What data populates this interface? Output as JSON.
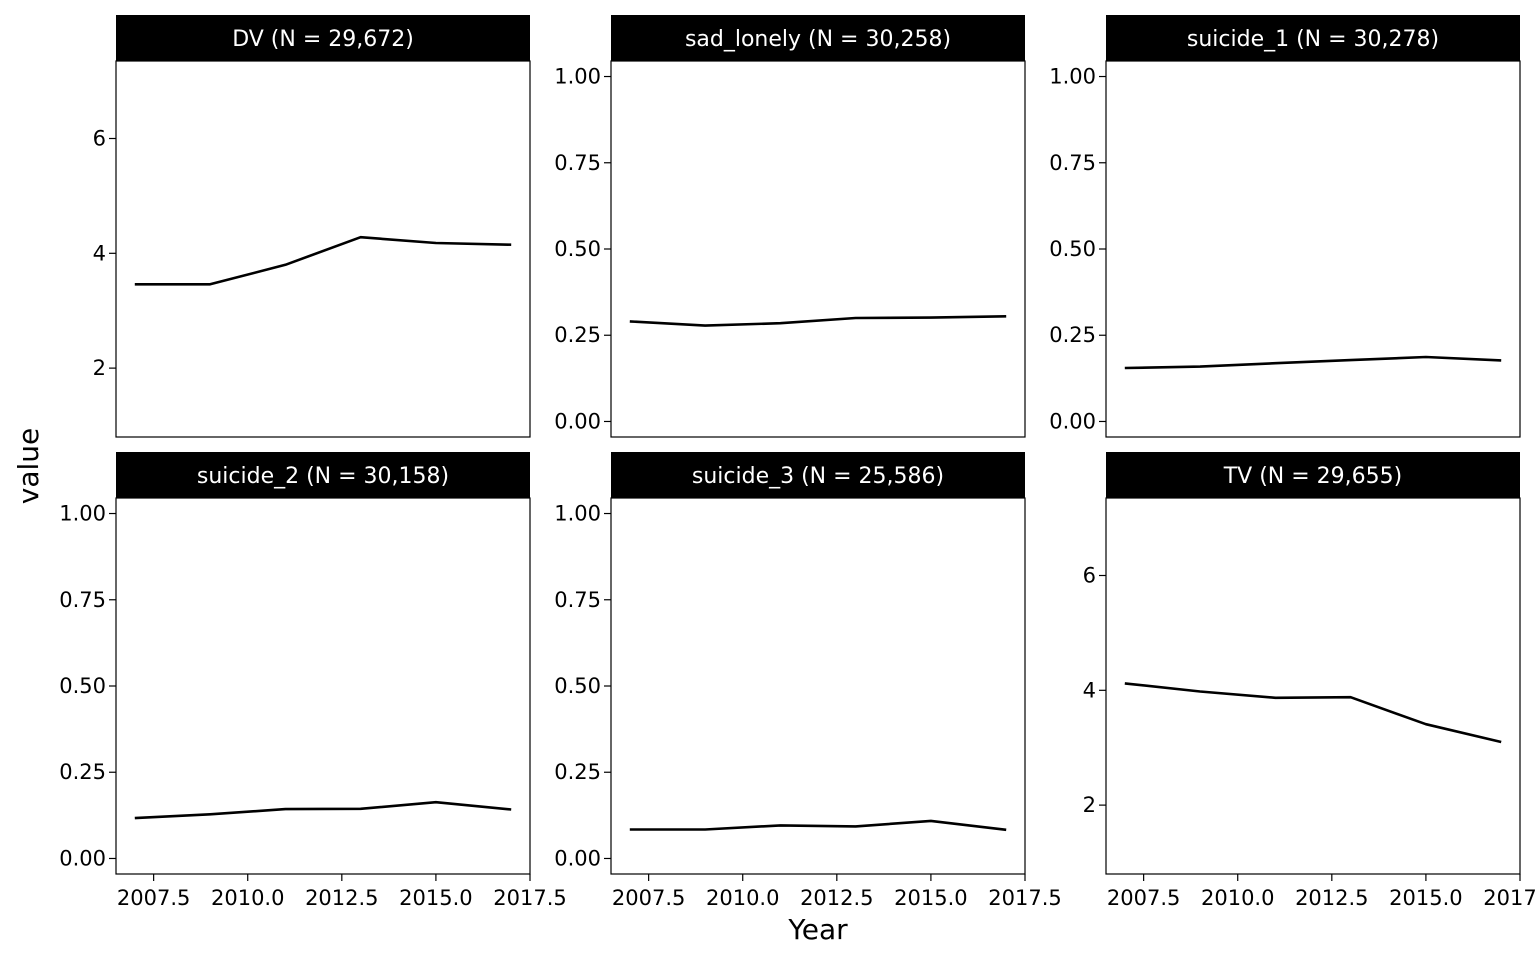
{
  "chart_data": {
    "type": "line",
    "xlabel": "Year",
    "ylabel": "value",
    "line_color": "#000000",
    "strip_color": "#000000",
    "strip_text_color": "#ffffff",
    "x_ticks": [
      "2007.5",
      "2010.0",
      "2012.5",
      "2015.0",
      "2017.5"
    ],
    "xlim": [
      2006.5,
      2017.5
    ],
    "panels": [
      {
        "title": "DV (N = 29,672)",
        "x": [
          2007,
          2009,
          2011,
          2013,
          2015,
          2017
        ],
        "values": [
          3.46,
          3.46,
          3.8,
          4.28,
          4.18,
          4.15
        ],
        "ylim": [
          0.8,
          7.35
        ],
        "y_ticks": [
          "2",
          "4",
          "6"
        ]
      },
      {
        "title": "sad_lonely (N = 30,258)",
        "x": [
          2007,
          2009,
          2011,
          2013,
          2015,
          2017
        ],
        "values": [
          0.29,
          0.278,
          0.285,
          0.3,
          0.301,
          0.305
        ],
        "ylim": [
          -0.045,
          1.045
        ],
        "y_ticks": [
          "0.00",
          "0.25",
          "0.50",
          "0.75",
          "1.00"
        ]
      },
      {
        "title": "suicide_1 (N = 30,278)",
        "x": [
          2007,
          2009,
          2011,
          2013,
          2015,
          2017
        ],
        "values": [
          0.155,
          0.159,
          0.169,
          0.178,
          0.187,
          0.177
        ],
        "ylim": [
          -0.045,
          1.045
        ],
        "y_ticks": [
          "0.00",
          "0.25",
          "0.50",
          "0.75",
          "1.00"
        ]
      },
      {
        "title": "suicide_2 (N = 30,158)",
        "x": [
          2007,
          2009,
          2011,
          2013,
          2015,
          2017
        ],
        "values": [
          0.117,
          0.128,
          0.143,
          0.144,
          0.163,
          0.142
        ],
        "ylim": [
          -0.045,
          1.045
        ],
        "y_ticks": [
          "0.00",
          "0.25",
          "0.50",
          "0.75",
          "1.00"
        ]
      },
      {
        "title": "suicide_3 (N = 25,586)",
        "x": [
          2007,
          2009,
          2011,
          2013,
          2015,
          2017
        ],
        "values": [
          0.084,
          0.084,
          0.096,
          0.093,
          0.109,
          0.083
        ],
        "ylim": [
          -0.045,
          1.045
        ],
        "y_ticks": [
          "0.00",
          "0.25",
          "0.50",
          "0.75",
          "1.00"
        ]
      },
      {
        "title": "TV (N = 29,655)",
        "x": [
          2007,
          2009,
          2011,
          2013,
          2015,
          2017
        ],
        "values": [
          4.12,
          3.98,
          3.87,
          3.88,
          3.41,
          3.1
        ],
        "ylim": [
          0.8,
          7.35
        ],
        "y_ticks": [
          "2",
          "4",
          "6"
        ]
      }
    ]
  }
}
